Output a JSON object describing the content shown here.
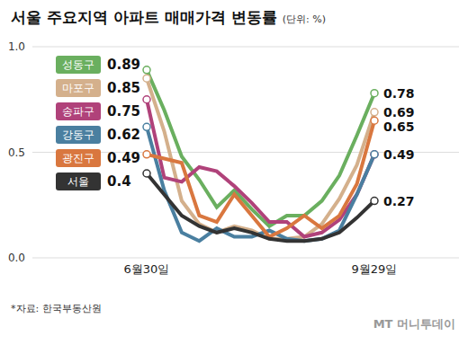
{
  "chart_data": {
    "type": "line",
    "title": "서울 주요지역 아파트 매매가격 변동률",
    "subtitle": "(단위: %)",
    "source": "*자료: 한국부동산원",
    "credit": "MT 머니투데이",
    "categories": [
      "6월30일",
      null,
      null,
      null,
      null,
      null,
      null,
      null,
      null,
      null,
      null,
      null,
      null,
      "9월29일"
    ],
    "series": [
      {
        "name": "성동구",
        "color": "#6aaf5f",
        "values": [
          0.89,
          0.7,
          0.48,
          0.37,
          0.24,
          0.32,
          0.23,
          0.15,
          0.2,
          0.2,
          0.27,
          0.39,
          0.58,
          0.78
        ]
      },
      {
        "name": "마포구",
        "color": "#d4b08c",
        "values": [
          0.85,
          0.6,
          0.27,
          0.16,
          0.12,
          0.15,
          0.13,
          0.09,
          0.09,
          0.1,
          0.16,
          0.28,
          0.44,
          0.69
        ]
      },
      {
        "name": "송파구",
        "color": "#b0427a",
        "values": [
          0.75,
          0.38,
          0.36,
          0.43,
          0.41,
          0.34,
          0.26,
          0.17,
          0.17,
          0.1,
          0.12,
          0.18,
          0.3,
          0.49
        ]
      },
      {
        "name": "강동구",
        "color": "#4a7fa0",
        "values": [
          0.62,
          0.32,
          0.12,
          0.08,
          0.14,
          0.1,
          0.1,
          0.13,
          0.09,
          0.08,
          0.09,
          0.13,
          0.3,
          0.49
        ]
      },
      {
        "name": "광진구",
        "color": "#d9773f",
        "values": [
          0.49,
          0.47,
          0.45,
          0.2,
          0.17,
          0.3,
          0.2,
          0.1,
          0.14,
          0.2,
          0.14,
          0.2,
          0.35,
          0.65
        ]
      },
      {
        "name": "서울",
        "color": "#333333",
        "values": [
          0.4,
          0.3,
          0.2,
          0.15,
          0.12,
          0.14,
          0.12,
          0.09,
          0.08,
          0.08,
          0.09,
          0.12,
          0.19,
          0.27
        ]
      }
    ],
    "ylim": [
      0,
      1.0
    ],
    "yticks": [
      {
        "value": 0,
        "label": "0.0"
      },
      0.5,
      {
        "value": 1.0,
        "label": "1.0"
      }
    ],
    "grid": true,
    "data_labels": true,
    "legend": "left"
  }
}
